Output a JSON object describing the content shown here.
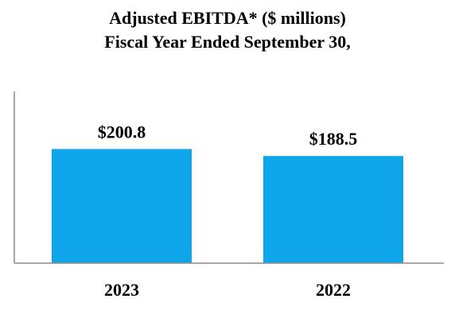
{
  "chart_data": {
    "type": "bar",
    "title_lines": [
      "Adjusted EBITDA* ($ millions)",
      "Fiscal Year Ended September 30,"
    ],
    "categories": [
      "2023",
      "2022"
    ],
    "values": [
      200.8,
      188.5
    ],
    "data_labels": [
      "$200.8",
      "$188.5"
    ],
    "ylim": [
      0,
      400
    ],
    "xlabel": "",
    "ylabel": "",
    "grid": false,
    "legend": "none",
    "bar_color": "#0fa5ea",
    "axis_color": "#8c8c8c"
  }
}
